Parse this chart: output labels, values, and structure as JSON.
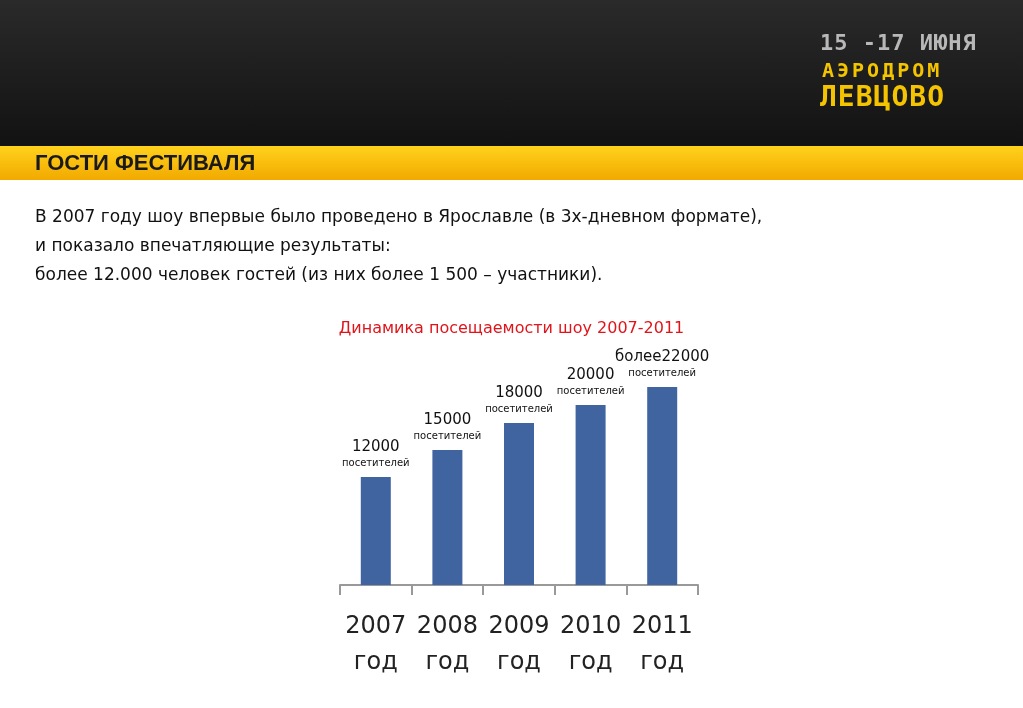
{
  "chart_data": {
    "type": "bar",
    "title": "Динамика посещаемости шоу 2007-2011",
    "annotations": [
      "15 -17 ИЮНЯ",
      "АЭРОДРОМ",
      "ЛЕВЦОВО",
      "ГОСТИ ФЕСТИВАЛЯ",
      "В 2007 году шоу впервые было проведено в Ярославле (в 3х-дневном формате),",
      "и показало впечатляющие результаты:",
      "более 12.000 человек гостей (из них более 1 500 – участники)."
    ],
    "categories": [
      "2007 год",
      "2008 год",
      "2009 год",
      "2010 год",
      "2011 год"
    ],
    "values": [
      12000,
      15000,
      18000,
      20000,
      22000
    ],
    "value_labels": [
      "12000 посетителей",
      "15000 посетителей",
      "18000 посетителей",
      "20000 посетителей",
      "более22000 посетителей"
    ],
    "color": "#3f64a0"
  }
}
